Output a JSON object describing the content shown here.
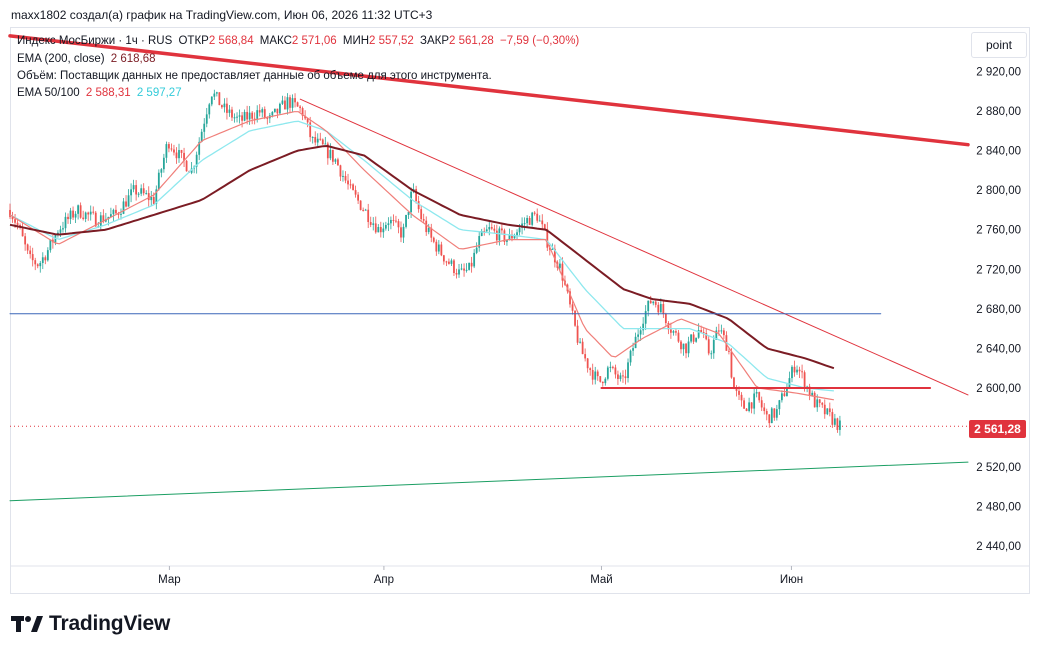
{
  "header": {
    "text": "maxx1802 создал(а) график на TradingView.com, Июн 06, 2026 11:32 UTC+3"
  },
  "legend": {
    "symbol": "Индекс МосБиржи · 1ч · RUS",
    "open_label": "ОТКР",
    "open_value": "2 568,84",
    "high_label": "МАКС",
    "high_value": "2 571,06",
    "low_label": "МИН",
    "low_value": "2 557,52",
    "close_label": "ЗАКР",
    "close_value": "2 561,28",
    "change": "−7,59 (−0,30%)",
    "ema200_label": "EMA (200, close)",
    "ema200_value": "2 618,68",
    "volume_note": "Объём: Поставщик данных не предоставляет данные об объеме для этого инструмента.",
    "ema_50_100_label": "EMA 50/100",
    "ema50_value": "2 588,31",
    "ema100_value": "2 597,27"
  },
  "scale_button": "point",
  "last_price": "2 561,28",
  "brand": "TradingView",
  "colors": {
    "up": "#26a69a",
    "down": "#ef5350",
    "ema200": "#7b1c24",
    "ema50": "#f07f7a",
    "ema100": "#8ee8ee",
    "trend_red": "#e0333d",
    "horizontal_blue": "#3a67b8",
    "support_green": "#1b9e63"
  },
  "chart_data": {
    "type": "candlestick",
    "y_ticks": [
      "2 920,00",
      "2 880,00",
      "2 840,00",
      "2 800,00",
      "2 760,00",
      "2 720,00",
      "2 680,00",
      "2 640,00",
      "2 600,00",
      "2 520,00",
      "2 480,00",
      "2 440,00"
    ],
    "y_tick_values": [
      2920,
      2880,
      2840,
      2800,
      2760,
      2720,
      2680,
      2640,
      2600,
      2520,
      2480,
      2440
    ],
    "ylim": [
      2420,
      2965
    ],
    "x_labels": [
      "Мар",
      "Апр",
      "Май",
      "Июн"
    ],
    "x_label_positions": [
      0.1664,
      0.3903,
      0.6174,
      0.8157
    ],
    "candle_range": [
      0,
      0.8663
    ],
    "path_anchors": [
      [
        0.0,
        2780
      ],
      [
        0.01,
        2760
      ],
      [
        0.02,
        2730
      ],
      [
        0.03,
        2725
      ],
      [
        0.04,
        2740
      ],
      [
        0.05,
        2760
      ],
      [
        0.07,
        2780
      ],
      [
        0.09,
        2770
      ],
      [
        0.11,
        2775
      ],
      [
        0.13,
        2800
      ],
      [
        0.15,
        2790
      ],
      [
        0.165,
        2850
      ],
      [
        0.18,
        2830
      ],
      [
        0.19,
        2820
      ],
      [
        0.21,
        2900
      ],
      [
        0.225,
        2880
      ],
      [
        0.24,
        2870
      ],
      [
        0.26,
        2880
      ],
      [
        0.27,
        2870
      ],
      [
        0.29,
        2890
      ],
      [
        0.305,
        2880
      ],
      [
        0.315,
        2850
      ],
      [
        0.325,
        2845
      ],
      [
        0.34,
        2830
      ],
      [
        0.355,
        2800
      ],
      [
        0.37,
        2780
      ],
      [
        0.385,
        2760
      ],
      [
        0.395,
        2770
      ],
      [
        0.41,
        2755
      ],
      [
        0.42,
        2800
      ],
      [
        0.43,
        2770
      ],
      [
        0.44,
        2750
      ],
      [
        0.455,
        2730
      ],
      [
        0.47,
        2715
      ],
      [
        0.48,
        2720
      ],
      [
        0.49,
        2750
      ],
      [
        0.5,
        2760
      ],
      [
        0.52,
        2750
      ],
      [
        0.54,
        2770
      ],
      [
        0.55,
        2775
      ],
      [
        0.56,
        2750
      ],
      [
        0.575,
        2720
      ],
      [
        0.585,
        2680
      ],
      [
        0.595,
        2640
      ],
      [
        0.605,
        2620
      ],
      [
        0.615,
        2605
      ],
      [
        0.625,
        2620
      ],
      [
        0.64,
        2605
      ],
      [
        0.65,
        2640
      ],
      [
        0.66,
        2670
      ],
      [
        0.67,
        2690
      ],
      [
        0.68,
        2680
      ],
      [
        0.69,
        2660
      ],
      [
        0.705,
        2640
      ],
      [
        0.72,
        2660
      ],
      [
        0.73,
        2635
      ],
      [
        0.74,
        2660
      ],
      [
        0.75,
        2640
      ],
      [
        0.755,
        2600
      ],
      [
        0.765,
        2580
      ],
      [
        0.78,
        2590
      ],
      [
        0.79,
        2570
      ],
      [
        0.8,
        2575
      ],
      [
        0.81,
        2600
      ],
      [
        0.82,
        2625
      ],
      [
        0.83,
        2605
      ],
      [
        0.84,
        2585
      ],
      [
        0.8663,
        2561
      ]
    ],
    "ema200_anchors": [
      [
        0.0,
        2765
      ],
      [
        0.05,
        2755
      ],
      [
        0.1,
        2760
      ],
      [
        0.15,
        2775
      ],
      [
        0.2,
        2790
      ],
      [
        0.25,
        2820
      ],
      [
        0.3,
        2840
      ],
      [
        0.33,
        2845
      ],
      [
        0.37,
        2835
      ],
      [
        0.42,
        2800
      ],
      [
        0.47,
        2775
      ],
      [
        0.52,
        2765
      ],
      [
        0.56,
        2760
      ],
      [
        0.6,
        2730
      ],
      [
        0.64,
        2700
      ],
      [
        0.67,
        2690
      ],
      [
        0.71,
        2685
      ],
      [
        0.75,
        2670
      ],
      [
        0.79,
        2640
      ],
      [
        0.83,
        2630
      ],
      [
        0.86,
        2620
      ]
    ],
    "ema100_anchors": [
      [
        0.0,
        2775
      ],
      [
        0.05,
        2750
      ],
      [
        0.1,
        2765
      ],
      [
        0.15,
        2785
      ],
      [
        0.2,
        2830
      ],
      [
        0.25,
        2860
      ],
      [
        0.3,
        2870
      ],
      [
        0.33,
        2860
      ],
      [
        0.37,
        2830
      ],
      [
        0.42,
        2790
      ],
      [
        0.47,
        2760
      ],
      [
        0.52,
        2755
      ],
      [
        0.56,
        2750
      ],
      [
        0.6,
        2700
      ],
      [
        0.64,
        2660
      ],
      [
        0.67,
        2660
      ],
      [
        0.71,
        2660
      ],
      [
        0.75,
        2645
      ],
      [
        0.79,
        2610
      ],
      [
        0.83,
        2600
      ],
      [
        0.86,
        2597
      ]
    ],
    "ema50_anchors": [
      [
        0.0,
        2775
      ],
      [
        0.05,
        2745
      ],
      [
        0.1,
        2770
      ],
      [
        0.15,
        2795
      ],
      [
        0.2,
        2850
      ],
      [
        0.25,
        2870
      ],
      [
        0.3,
        2880
      ],
      [
        0.33,
        2860
      ],
      [
        0.37,
        2820
      ],
      [
        0.42,
        2775
      ],
      [
        0.47,
        2740
      ],
      [
        0.52,
        2750
      ],
      [
        0.56,
        2750
      ],
      [
        0.6,
        2660
      ],
      [
        0.63,
        2630
      ],
      [
        0.66,
        2650
      ],
      [
        0.7,
        2670
      ],
      [
        0.74,
        2655
      ],
      [
        0.78,
        2600
      ],
      [
        0.82,
        2595
      ],
      [
        0.86,
        2588
      ]
    ],
    "trendlines": [
      {
        "name": "long-downtrend",
        "color": "#e0333d",
        "width": 3.5,
        "points": [
          [
            0.0,
            2956
          ],
          [
            1.0,
            2846
          ]
        ]
      },
      {
        "name": "resistance-downtrend",
        "color": "#e0333d",
        "width": 1,
        "points": [
          [
            0.303,
            2892
          ],
          [
            1.0,
            2593
          ]
        ]
      },
      {
        "name": "horizontal-resistance",
        "color": "#3a67b8",
        "width": 1,
        "points": [
          [
            0.0,
            2675
          ],
          [
            0.9089,
            2675
          ]
        ]
      },
      {
        "name": "horizontal-support",
        "color": "#e0333d",
        "width": 2,
        "points": [
          [
            0.6174,
            2600
          ],
          [
            0.9604,
            2600
          ]
        ]
      },
      {
        "name": "long-support",
        "color": "#1b9e63",
        "width": 1,
        "points": [
          [
            0.0,
            2486
          ],
          [
            1.0,
            2525
          ]
        ]
      }
    ],
    "last_price_value": 2561.28
  }
}
